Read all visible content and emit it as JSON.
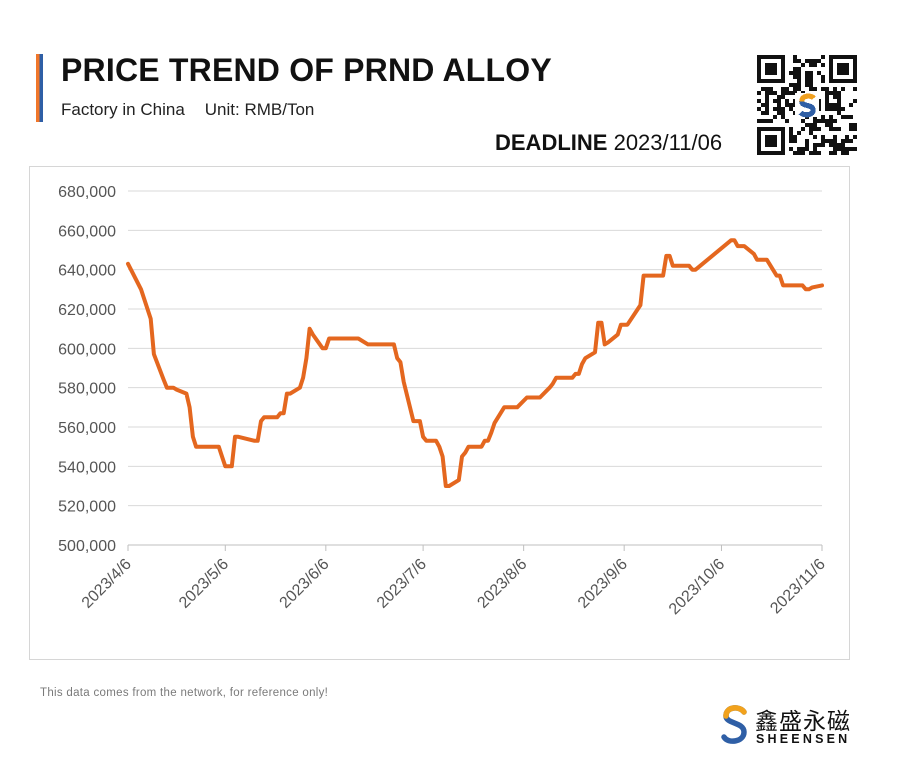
{
  "header": {
    "title": "PRICE TREND OF PRND ALLOY",
    "subtitle_left": "Factory in China",
    "subtitle_right": "Unit: RMB/Ton",
    "deadline_label": "DEADLINE",
    "deadline_date": "2023/11/06"
  },
  "footer": {
    "note": "This data comes from the network, for reference only!",
    "brand_cn": "鑫盛永磁",
    "brand_en": "SHEENSEN"
  },
  "colors": {
    "line": "#e4671f",
    "accent_orange": "#f0762a",
    "accent_blue": "#2f5fa6",
    "grid": "#d9d9d9",
    "axis_text": "#555555"
  },
  "icons": {
    "qr": "qr-code-icon",
    "brand": "sheensen-logo-icon"
  },
  "chart_data": {
    "type": "line",
    "title": "PRICE TREND OF PRND ALLOY",
    "xlabel": "",
    "ylabel": "",
    "ylim": [
      500000,
      680000
    ],
    "y_ticks": [
      500000,
      520000,
      540000,
      560000,
      580000,
      600000,
      620000,
      640000,
      660000,
      680000
    ],
    "y_tick_labels": [
      "500,000",
      "520,000",
      "540,000",
      "560,000",
      "580,000",
      "600,000",
      "620,000",
      "640,000",
      "660,000",
      "680,000"
    ],
    "x_range": [
      "2023-04-06",
      "2023-11-06"
    ],
    "x_ticks": [
      "2023-04-06",
      "2023-05-06",
      "2023-06-06",
      "2023-07-06",
      "2023-08-06",
      "2023-09-06",
      "2023-10-06",
      "2023-11-06"
    ],
    "x_tick_labels": [
      "2023/4/6",
      "2023/5/6",
      "2023/6/6",
      "2023/7/6",
      "2023/8/6",
      "2023/9/6",
      "2023/10/6",
      "2023/11/6"
    ],
    "grid": true,
    "legend": "none",
    "series": [
      {
        "x": [
          "2023-04-06",
          "2023-04-10",
          "2023-04-13",
          "2023-04-14",
          "2023-04-17",
          "2023-04-18",
          "2023-04-19",
          "2023-04-20",
          "2023-04-21",
          "2023-04-24",
          "2023-04-25",
          "2023-04-26",
          "2023-04-27",
          "2023-04-28",
          "2023-05-04",
          "2023-05-05",
          "2023-05-06",
          "2023-05-08",
          "2023-05-09",
          "2023-05-10",
          "2023-05-15",
          "2023-05-16",
          "2023-05-17",
          "2023-05-18",
          "2023-05-22",
          "2023-05-23",
          "2023-05-24",
          "2023-05-25",
          "2023-05-26",
          "2023-05-29",
          "2023-05-30",
          "2023-05-31",
          "2023-06-01",
          "2023-06-02",
          "2023-06-05",
          "2023-06-06",
          "2023-06-07",
          "2023-06-14",
          "2023-06-15",
          "2023-06-16",
          "2023-06-19",
          "2023-06-20",
          "2023-06-21",
          "2023-06-26",
          "2023-06-27",
          "2023-06-28",
          "2023-06-29",
          "2023-06-30",
          "2023-07-03",
          "2023-07-04",
          "2023-07-05",
          "2023-07-06",
          "2023-07-07",
          "2023-07-10",
          "2023-07-11",
          "2023-07-12",
          "2023-07-13",
          "2023-07-14",
          "2023-07-17",
          "2023-07-18",
          "2023-07-19",
          "2023-07-20",
          "2023-07-21",
          "2023-07-24",
          "2023-07-25",
          "2023-07-26",
          "2023-07-27",
          "2023-07-28",
          "2023-07-31",
          "2023-08-01",
          "2023-08-02",
          "2023-08-03",
          "2023-08-04",
          "2023-08-07",
          "2023-08-08",
          "2023-08-09",
          "2023-08-10",
          "2023-08-11",
          "2023-08-14",
          "2023-08-15",
          "2023-08-16",
          "2023-08-17",
          "2023-08-18",
          "2023-08-21",
          "2023-08-22",
          "2023-08-23",
          "2023-08-24",
          "2023-08-25",
          "2023-08-28",
          "2023-08-29",
          "2023-08-30",
          "2023-08-31",
          "2023-09-01",
          "2023-09-04",
          "2023-09-05",
          "2023-09-06",
          "2023-09-07",
          "2023-09-11",
          "2023-09-12",
          "2023-09-13",
          "2023-09-14",
          "2023-09-15",
          "2023-09-18",
          "2023-09-19",
          "2023-09-20",
          "2023-09-21",
          "2023-09-22",
          "2023-09-25",
          "2023-09-26",
          "2023-09-27",
          "2023-09-28",
          "2023-10-09",
          "2023-10-10",
          "2023-10-11",
          "2023-10-12",
          "2023-10-13",
          "2023-10-16",
          "2023-10-17",
          "2023-10-18",
          "2023-10-19",
          "2023-10-20",
          "2023-10-23",
          "2023-10-24",
          "2023-10-25",
          "2023-10-26",
          "2023-10-27",
          "2023-10-30",
          "2023-10-31",
          "2023-11-01",
          "2023-11-02",
          "2023-11-03",
          "2023-11-06"
        ],
        "y": [
          643000,
          630000,
          615000,
          597000,
          584000,
          580000,
          580000,
          580000,
          579000,
          577000,
          570000,
          555000,
          550000,
          550000,
          550000,
          545000,
          540000,
          540000,
          555000,
          555000,
          553000,
          553000,
          563000,
          565000,
          565000,
          567000,
          567000,
          577000,
          577000,
          580000,
          585000,
          595000,
          610000,
          607000,
          600000,
          600000,
          605000,
          605000,
          605000,
          605000,
          602000,
          602000,
          602000,
          602000,
          602000,
          595000,
          593000,
          583000,
          563000,
          563000,
          563000,
          555000,
          553000,
          553000,
          550000,
          545000,
          530000,
          530000,
          533000,
          545000,
          547000,
          550000,
          550000,
          550000,
          553000,
          553000,
          557000,
          562000,
          570000,
          570000,
          570000,
          570000,
          570000,
          575000,
          575000,
          575000,
          575000,
          575000,
          580000,
          582000,
          585000,
          585000,
          585000,
          585000,
          587000,
          587000,
          592000,
          595000,
          598000,
          613000,
          613000,
          602000,
          603000,
          607000,
          612000,
          612000,
          612000,
          622000,
          637000,
          637000,
          637000,
          637000,
          637000,
          647000,
          647000,
          642000,
          642000,
          642000,
          642000,
          640000,
          640000,
          655000,
          655000,
          652000,
          652000,
          652000,
          648000,
          645000,
          645000,
          645000,
          645000,
          637000,
          637000,
          632000,
          632000,
          632000,
          632000,
          632000,
          630000,
          630000,
          631000,
          632000
        ]
      }
    ]
  }
}
